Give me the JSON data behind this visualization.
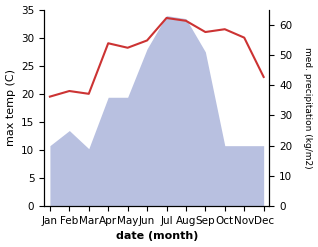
{
  "months": [
    "Jan",
    "Feb",
    "Mar",
    "Apr",
    "May",
    "Jun",
    "Jul",
    "Aug",
    "Sep",
    "Oct",
    "Nov",
    "Dec"
  ],
  "temperature": [
    19.5,
    20.5,
    20.0,
    29.0,
    28.2,
    29.5,
    33.5,
    33.0,
    31.0,
    31.5,
    30.0,
    23.0
  ],
  "precipitation_right": [
    20,
    25,
    19,
    36,
    36,
    52,
    63,
    62,
    51,
    20,
    20,
    20
  ],
  "temp_color": "#cc3333",
  "precip_fill_color": "#b8c0e0",
  "ylabel_left": "max temp (C)",
  "ylabel_right": "med. precipitation (kg/m2)",
  "xlabel": "date (month)",
  "ylim_left": [
    0,
    35
  ],
  "ylim_right": [
    0,
    65
  ],
  "yticks_left": [
    0,
    5,
    10,
    15,
    20,
    25,
    30,
    35
  ],
  "yticks_right": [
    0,
    10,
    20,
    30,
    40,
    50,
    60
  ],
  "label_fontsize": 8,
  "tick_fontsize": 7.5
}
